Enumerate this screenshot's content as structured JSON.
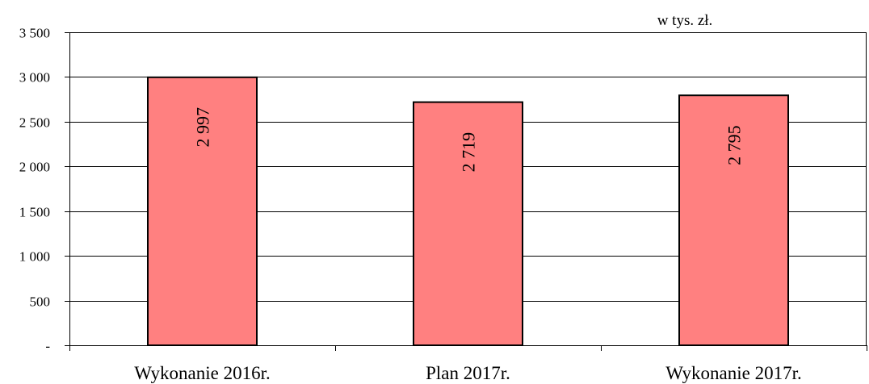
{
  "chart_data": {
    "type": "bar",
    "unit_note": "w tys. zł.",
    "categories": [
      "Wykonanie 2016r.",
      "Plan 2017r.",
      "Wykonanie 2017r."
    ],
    "values": [
      2997,
      2719,
      2795
    ],
    "data_labels": [
      "2 997",
      "2 719",
      "2 795"
    ],
    "ylim": [
      0,
      3500
    ],
    "y_ticks": [
      {
        "value": 0,
        "label": "-"
      },
      {
        "value": 500,
        "label": "500"
      },
      {
        "value": 1000,
        "label": "1 000"
      },
      {
        "value": 1500,
        "label": "1 500"
      },
      {
        "value": 2000,
        "label": "2 000"
      },
      {
        "value": 2500,
        "label": "2 500"
      },
      {
        "value": 3000,
        "label": "3 000"
      },
      {
        "value": 3500,
        "label": "3 500"
      }
    ],
    "grid": true,
    "bar_color": "#ff8080",
    "bar_outline_color": "#000000"
  }
}
